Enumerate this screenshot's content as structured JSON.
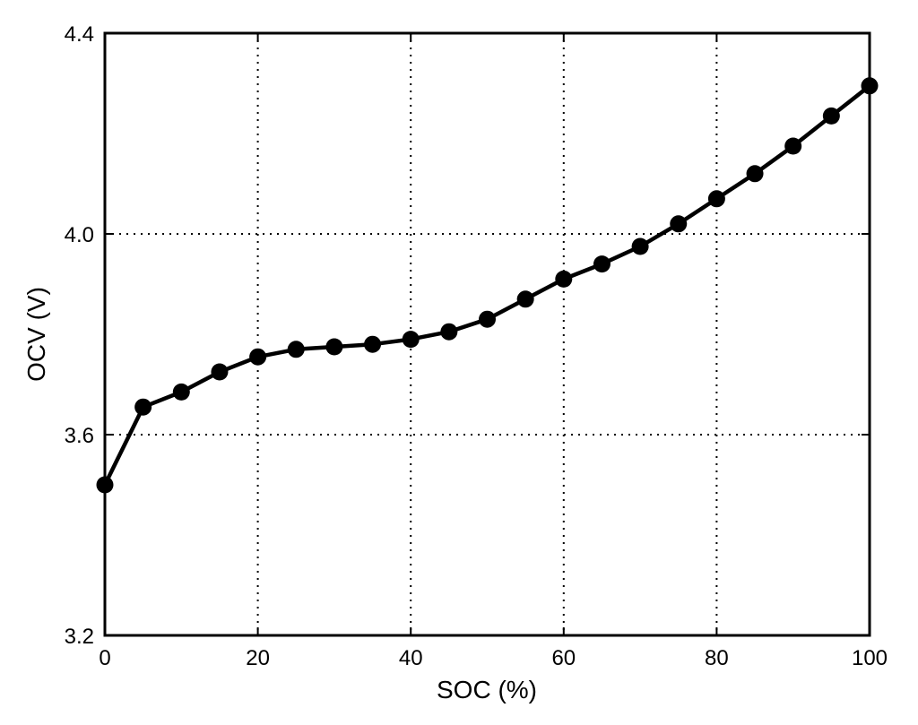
{
  "chart_data": {
    "type": "line",
    "title": "",
    "xlabel": "SOC (%)",
    "ylabel": "OCV (V)",
    "xlim": [
      0,
      100
    ],
    "ylim": [
      3.2,
      4.4
    ],
    "xticks": [
      0,
      20,
      40,
      60,
      80,
      100
    ],
    "xtick_labels": [
      "0",
      "20",
      "40",
      "60",
      "80",
      "100"
    ],
    "yticks": [
      3.2,
      3.6,
      4.0,
      4.4
    ],
    "ytick_labels": [
      "3.2",
      "3.6",
      "4.0",
      "4.4"
    ],
    "grid": true,
    "grid_style": "dotted",
    "marker": "filled-circle",
    "line_color": "#000000",
    "series": [
      {
        "x": [
          0,
          5,
          10,
          15,
          20,
          25,
          30,
          35,
          40,
          45,
          50,
          55,
          60,
          65,
          70,
          75,
          80,
          85,
          90,
          95,
          100
        ],
        "values": [
          3.5,
          3.655,
          3.685,
          3.725,
          3.755,
          3.77,
          3.775,
          3.78,
          3.79,
          3.805,
          3.83,
          3.87,
          3.91,
          3.94,
          3.975,
          4.02,
          4.07,
          4.12,
          4.175,
          4.235,
          4.295
        ]
      }
    ]
  }
}
